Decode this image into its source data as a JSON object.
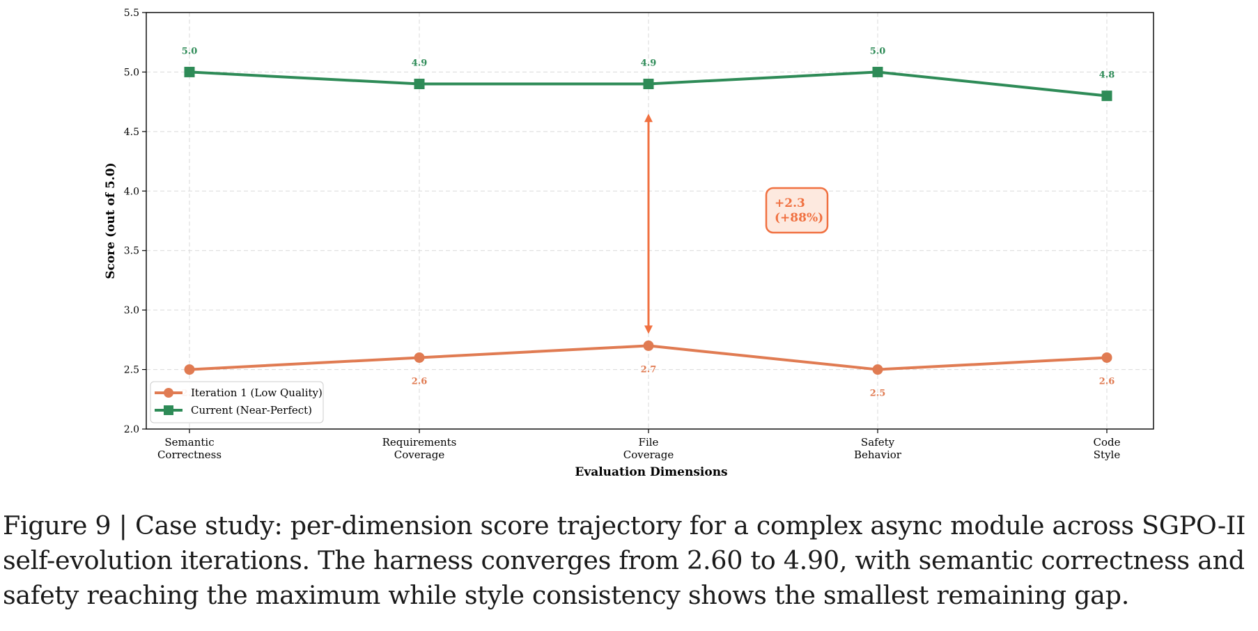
{
  "chart_data": {
    "type": "line",
    "categories": [
      [
        "Semantic",
        "Correctness"
      ],
      [
        "Requirements",
        "Coverage"
      ],
      [
        "File",
        "Coverage"
      ],
      [
        "Safety",
        "Behavior"
      ],
      [
        "Code",
        "Style"
      ]
    ],
    "series": [
      {
        "name": "Iteration 1 (Low Quality)",
        "values": [
          2.5,
          2.6,
          2.7,
          2.5,
          2.6
        ],
        "labels": [
          "2.5",
          "2.6",
          "2.7",
          "2.5",
          "2.6"
        ],
        "color": "#e07b52",
        "marker": "circle"
      },
      {
        "name": "Current (Near-Perfect)",
        "values": [
          5.0,
          4.9,
          4.9,
          5.0,
          4.8
        ],
        "labels": [
          "5.0",
          "4.9",
          "4.9",
          "5.0",
          "4.8"
        ],
        "color": "#2e8b57",
        "marker": "square"
      }
    ],
    "xlabel": "Evaluation Dimensions",
    "ylabel": "Score (out of 5.0)",
    "ylim": [
      2.0,
      5.5
    ],
    "yticks": [
      "2.0",
      "2.5",
      "3.0",
      "3.5",
      "4.0",
      "4.5",
      "5.0",
      "5.5"
    ],
    "grid": true,
    "legend_position": "lower-left",
    "annotation": {
      "category_index": 2,
      "from": 2.8,
      "to": 4.65,
      "text_lines": [
        "+2.3",
        "(+88%)"
      ],
      "color": "#f07040"
    }
  },
  "caption": "Figure 9 | Case study: per-dimension score trajectory for a complex async module across SGPO-II self-evolution iterations. The harness converges from 2.60 to 4.90, with semantic correctness and safety reaching the maximum while style consistency shows the smallest remaining gap."
}
